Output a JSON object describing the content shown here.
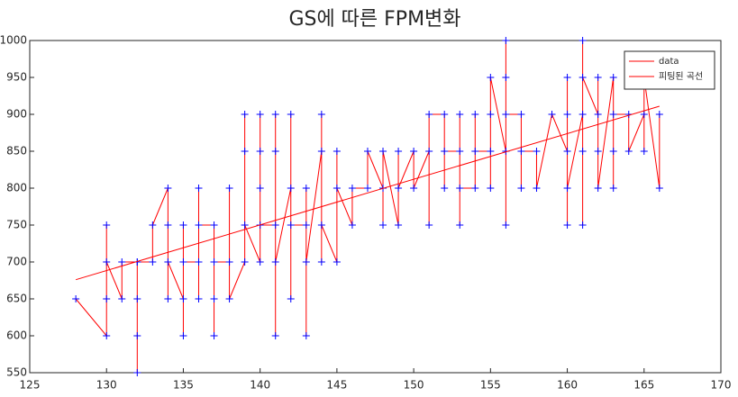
{
  "chart_data": {
    "type": "line",
    "title": "GS에 따른 FPM변화",
    "xlim": [
      125,
      170
    ],
    "xticks": [
      125,
      130,
      135,
      140,
      145,
      150,
      155,
      160,
      165,
      170
    ],
    "ylim": [
      550,
      1000
    ],
    "yticks": [
      550,
      600,
      650,
      700,
      750,
      800,
      850,
      900,
      950,
      1000
    ],
    "legend": "upper-right",
    "series": [
      {
        "name": "data",
        "color": "#ff0000",
        "marker_color": "#0000ff",
        "x": [
          128,
          130,
          130,
          130,
          130,
          131,
          131,
          132,
          132,
          132,
          132,
          132,
          133,
          133,
          134,
          134,
          134,
          134,
          135,
          135,
          135,
          135,
          136,
          136,
          136,
          136,
          137,
          137,
          137,
          137,
          138,
          138,
          138,
          139,
          139,
          139,
          139,
          140,
          140,
          140,
          140,
          140,
          141,
          141,
          141,
          141,
          141,
          142,
          142,
          142,
          142,
          143,
          143,
          143,
          143,
          144,
          144,
          144,
          144,
          145,
          145,
          145,
          146,
          146,
          147,
          147,
          148,
          148,
          148,
          149,
          149,
          149,
          150,
          150,
          151,
          151,
          151,
          152,
          152,
          152,
          153,
          153,
          153,
          153,
          154,
          154,
          154,
          155,
          155,
          155,
          155,
          156,
          156,
          156,
          156,
          156,
          157,
          157,
          157,
          158,
          158,
          159,
          160,
          160,
          160,
          160,
          160,
          161,
          161,
          161,
          161,
          161,
          162,
          162,
          162,
          162,
          163,
          163,
          163,
          163,
          164,
          164,
          165,
          165,
          165,
          166,
          166
        ],
        "values": [
          650,
          600,
          750,
          650,
          700,
          650,
          700,
          700,
          550,
          650,
          600,
          700,
          700,
          750,
          800,
          650,
          750,
          700,
          650,
          600,
          750,
          700,
          700,
          800,
          650,
          750,
          750,
          600,
          650,
          700,
          700,
          800,
          650,
          700,
          900,
          850,
          750,
          700,
          900,
          800,
          850,
          750,
          750,
          900,
          600,
          850,
          700,
          800,
          900,
          650,
          750,
          750,
          600,
          800,
          700,
          850,
          900,
          700,
          750,
          700,
          850,
          800,
          750,
          800,
          800,
          850,
          800,
          750,
          850,
          750,
          850,
          800,
          850,
          800,
          850,
          750,
          900,
          900,
          800,
          850,
          850,
          750,
          900,
          800,
          800,
          900,
          850,
          850,
          800,
          900,
          950,
          850,
          750,
          1000,
          950,
          900,
          900,
          800,
          850,
          850,
          800,
          900,
          850,
          750,
          950,
          900,
          800,
          900,
          750,
          1000,
          850,
          950,
          900,
          850,
          950,
          800,
          950,
          800,
          850,
          900,
          900,
          850,
          900,
          850,
          950,
          800,
          900
        ]
      },
      {
        "name": "피팅된 곡선",
        "color": "#ff0000",
        "x": [
          128,
          166
        ],
        "values": [
          676,
          911
        ]
      }
    ]
  }
}
